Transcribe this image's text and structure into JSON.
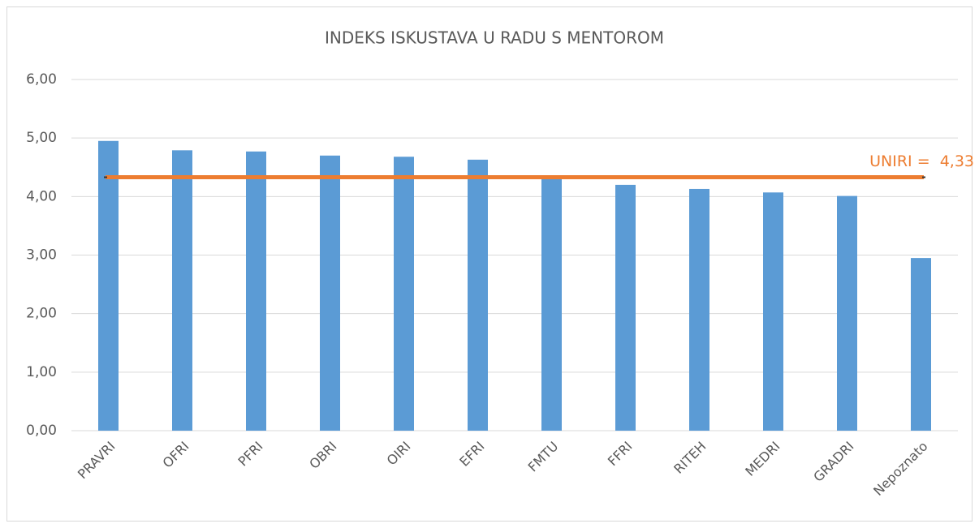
{
  "chart_data": {
    "type": "bar",
    "title": "INDEKS ISKUSTAVA U RADU S MENTOROM",
    "categories": [
      "PRAVRI",
      "OFRI",
      "PFRI",
      "OBRI",
      "OIRI",
      "EFRI",
      "FMTU",
      "FFRI",
      "RITEH",
      "MEDRI",
      "GRADRI",
      "Nepoznato"
    ],
    "values": [
      4.95,
      4.79,
      4.77,
      4.7,
      4.68,
      4.63,
      4.35,
      4.2,
      4.13,
      4.07,
      4.01,
      2.95
    ],
    "color": "#5b9bd5",
    "ylim": [
      0,
      6
    ],
    "yticks": [
      {
        "value": 0,
        "label": "0,00"
      },
      {
        "value": 1,
        "label": "1,00"
      },
      {
        "value": 2,
        "label": "2,00"
      },
      {
        "value": 3,
        "label": "3,00"
      },
      {
        "value": 4,
        "label": "4,00"
      },
      {
        "value": 5,
        "label": "5,00"
      },
      {
        "value": 6,
        "label": "6,00"
      }
    ],
    "grid": true,
    "reference_line": {
      "value": 4.33,
      "label": "UNIRI =  4,33",
      "color": "#ed7d31"
    }
  }
}
